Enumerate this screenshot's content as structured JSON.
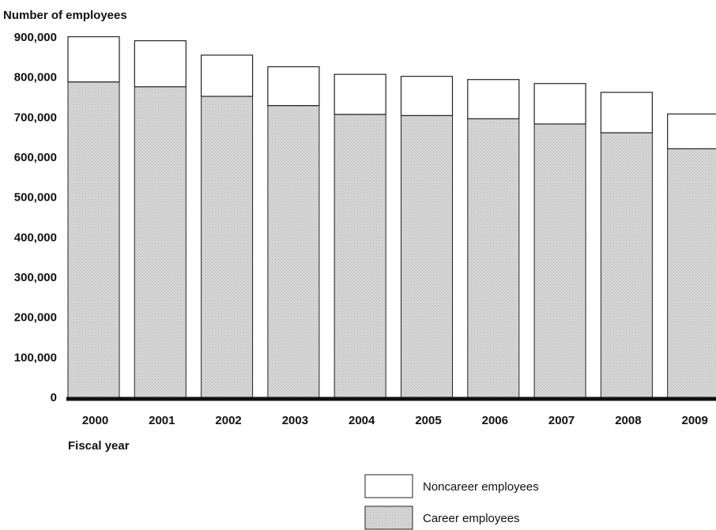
{
  "chart_data": {
    "type": "bar",
    "stacked": true,
    "ylabel": "Number of employees",
    "xlabel": "Fiscal year",
    "categories": [
      "2000",
      "2001",
      "2002",
      "2003",
      "2004",
      "2005",
      "2006",
      "2007",
      "2008",
      "2009"
    ],
    "series": [
      {
        "name": "Career employees",
        "values": [
          788000,
          776000,
          752000,
          729000,
          707000,
          704000,
          696000,
          683000,
          661000,
          621000
        ],
        "color": "#d4d4d4"
      },
      {
        "name": "Noncareer employees",
        "values": [
          113000,
          115000,
          103000,
          97000,
          100000,
          98000,
          98000,
          101000,
          101000,
          87000
        ],
        "color": "#ffffff"
      }
    ],
    "yticks": [
      0,
      100000,
      200000,
      300000,
      400000,
      500000,
      600000,
      700000,
      800000,
      900000
    ],
    "ytick_labels": [
      "0",
      "100,000",
      "200,000",
      "300,000",
      "400,000",
      "500,000",
      "600,000",
      "700,000",
      "800,000",
      "900,000"
    ],
    "ylim": [
      0,
      900000
    ],
    "grid": false,
    "legend_position": "bottom-right"
  }
}
